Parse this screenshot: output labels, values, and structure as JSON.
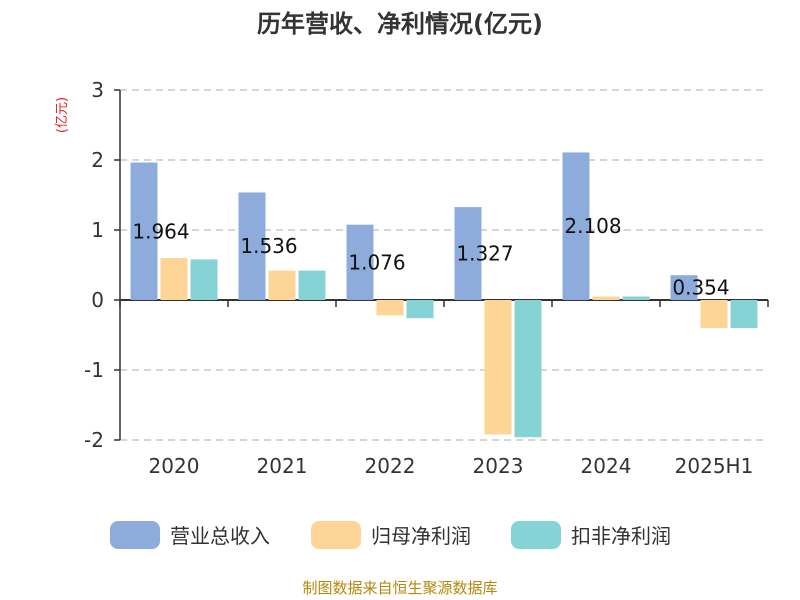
{
  "chart_data": {
    "type": "bar",
    "title": "历年营收、净利情况(亿元)",
    "unit_label": "(亿元)",
    "categories": [
      "2020",
      "2021",
      "2022",
      "2023",
      "2024",
      "2025H1"
    ],
    "series": [
      {
        "name": "营业总收入",
        "color": "#8eacdb",
        "values": [
          1.964,
          1.536,
          1.076,
          1.327,
          2.108,
          0.354
        ],
        "labels": [
          "1.964",
          "1.536",
          "1.076",
          "1.327",
          "2.108",
          "0.354"
        ]
      },
      {
        "name": "归母净利润",
        "color": "#fdd597",
        "values": [
          0.6,
          0.42,
          -0.22,
          -1.92,
          0.05,
          -0.4
        ]
      },
      {
        "name": "扣非净利润",
        "color": "#86d3d6",
        "values": [
          0.58,
          0.42,
          -0.26,
          -1.96,
          0.05,
          -0.4
        ]
      }
    ],
    "y_ticks": [
      3,
      2,
      1,
      0,
      -1,
      -2
    ],
    "ylim": [
      -2,
      3
    ],
    "grid": true,
    "legend_position": "bottom"
  },
  "source": "制图数据来自恒生聚源数据库"
}
